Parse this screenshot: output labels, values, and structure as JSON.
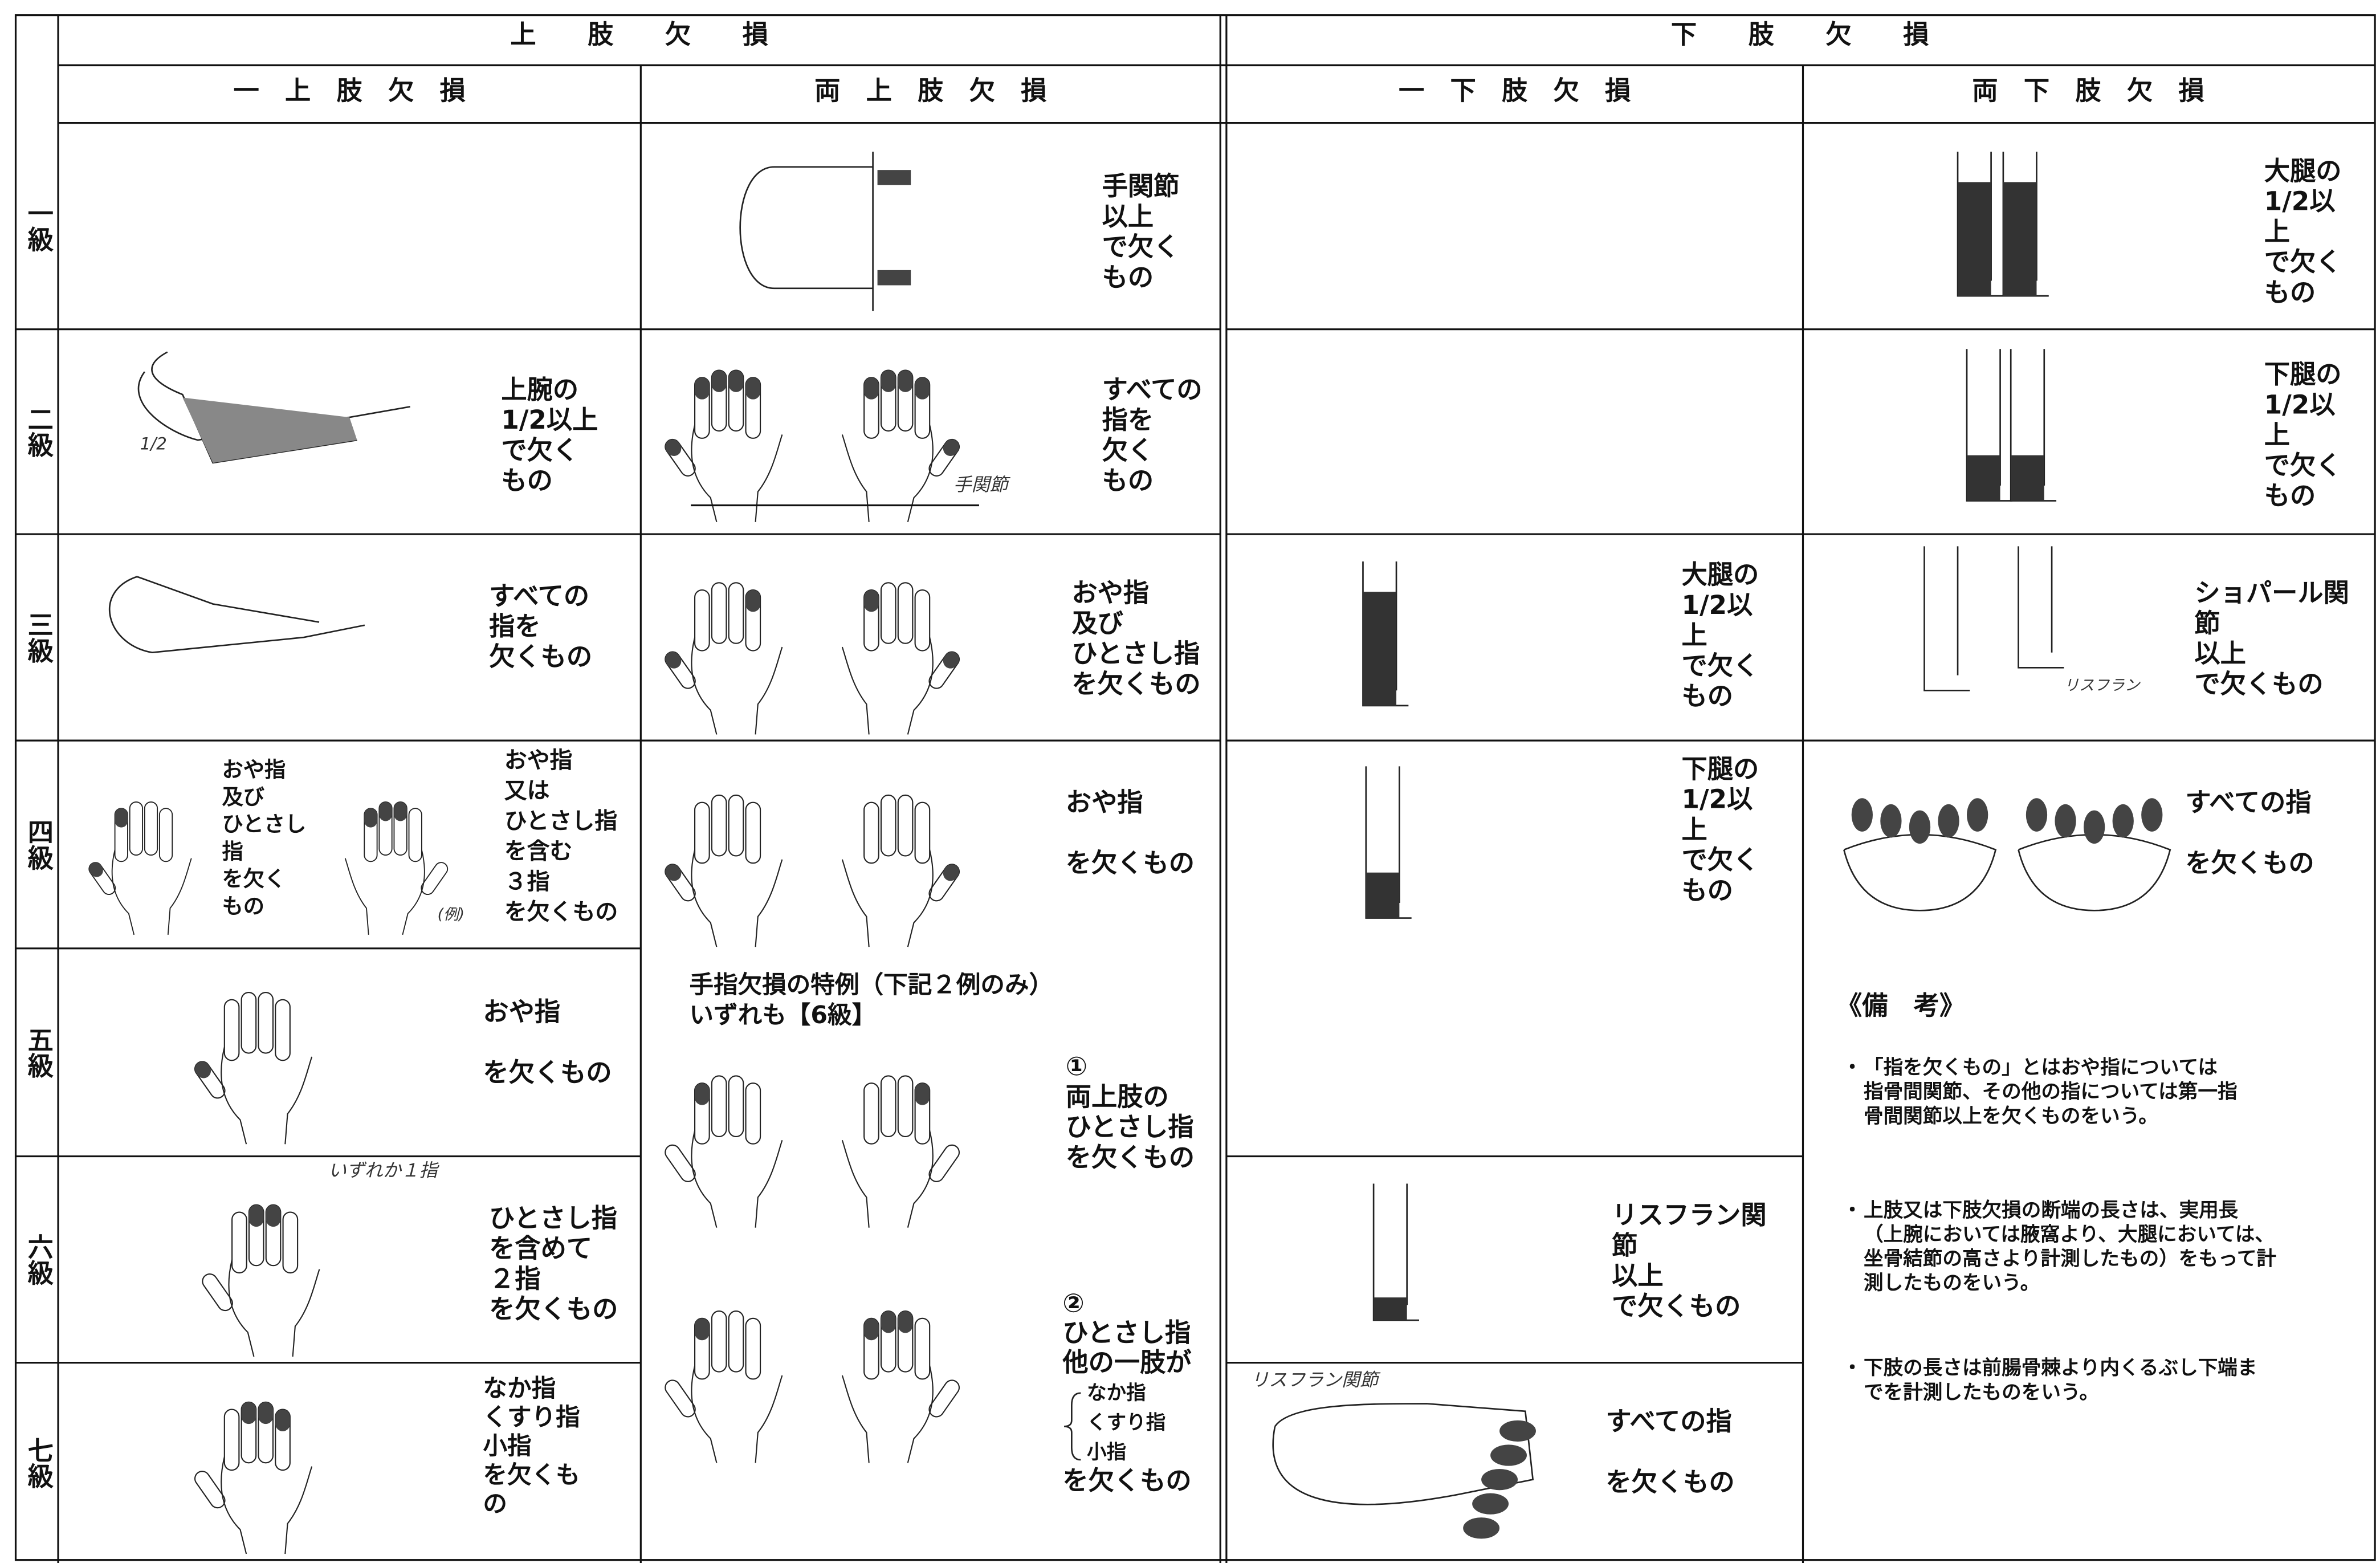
{
  "header": {
    "upper": "上　　肢　　欠　　損",
    "lower": "下　　肢　　欠　　損"
  },
  "subheaders": [
    "一　上　肢　欠　損",
    "両　上　肢　欠　損",
    "一　下　肢　欠　損",
    "両　下　肢　欠　損"
  ],
  "grades": [
    "一級",
    "二級",
    "三級",
    "四級",
    "五級",
    "六級",
    "七級"
  ],
  "cells": {
    "r1_both_upper": [
      "手関節",
      "以上",
      "で欠く",
      "もの"
    ],
    "r1_both_lower": [
      "大腿の",
      "1/2以",
      "上",
      "で欠く",
      "もの"
    ],
    "r2_one_upper": [
      "上腕の",
      "1/2以上",
      "で欠く",
      "もの"
    ],
    "r2_both_upper": [
      "すべての",
      "指を",
      "欠く",
      "もの"
    ],
    "r2_both_lower": [
      "下腿の",
      "1/2以",
      "上",
      "で欠く",
      "もの"
    ],
    "r3_one_upper": [
      "すべての",
      "指を",
      "欠くもの"
    ],
    "r3_both_upper": [
      "おや指",
      "及び",
      "ひとさし指",
      "を欠くもの"
    ],
    "r3_one_lower": [
      "大腿の",
      "1/2以",
      "上",
      "で欠く",
      "もの"
    ],
    "r3_both_lower": [
      "ショパール関",
      "節",
      "以上",
      "で欠くもの"
    ],
    "r4_one_upper_a": [
      "おや指",
      "及び",
      "ひとさし",
      "指",
      "を欠く",
      "もの"
    ],
    "r4_one_upper_b": [
      "おや指",
      "又は",
      "ひとさし指",
      "を含む",
      "３指",
      "を欠くもの"
    ],
    "r4_both_upper": [
      "おや指",
      "を欠くもの"
    ],
    "r4_one_lower": [
      "下腿の",
      "1/2以",
      "上",
      "で欠く",
      "もの"
    ],
    "r4_both_lower": [
      "すべての指",
      "を欠くもの"
    ],
    "r5_one_upper": [
      "おや指",
      "を欠くもの"
    ],
    "r6_one_upper": [
      "ひとさし指",
      "を含めて",
      "２指",
      "を欠くもの"
    ],
    "r7_one_upper": [
      "なか指",
      "くすり指",
      "小指",
      "を欠くも",
      "の"
    ],
    "special_title": [
      "手指欠損の特例（下記２例のみ）",
      "いずれも【6級】"
    ],
    "special_1": [
      "①",
      "両上肢の",
      "ひとさし指",
      "を欠くもの"
    ],
    "special_2": [
      "②",
      "ひとさし指",
      "他の一肢が",
      "なか指",
      "くすり指",
      "小指",
      "を欠くもの"
    ],
    "r6_one_lower": [
      "リスフラン関",
      "節",
      "以上",
      "で欠くもの"
    ],
    "r7_one_lower": [
      "すべての指",
      "を欠くもの"
    ]
  },
  "annotations": {
    "half": "1/2",
    "example": "(例)",
    "either": "いずれか１指",
    "wrist": "手関節",
    "lisfranc": "リスフラン",
    "lisfranc_joint": "リスフラン関節"
  },
  "remarks": {
    "title": "《備　考》",
    "items": [
      [
        "「指を欠くもの」とはおや指については",
        "指骨間関節、その他の指については第一指",
        "骨間関節以上を欠くものをいう。"
      ],
      [
        "上肢又は下肢欠損の断端の長さは、実用長",
        "（上腕においては腋窩より、大腿においては、",
        "坐骨結節の高さより計測したもの）をもって計",
        "測したものをいう。"
      ],
      [
        "下肢の長さは前腸骨棘より内くるぶし下端ま",
        "でを計測したものをいう。"
      ]
    ]
  }
}
